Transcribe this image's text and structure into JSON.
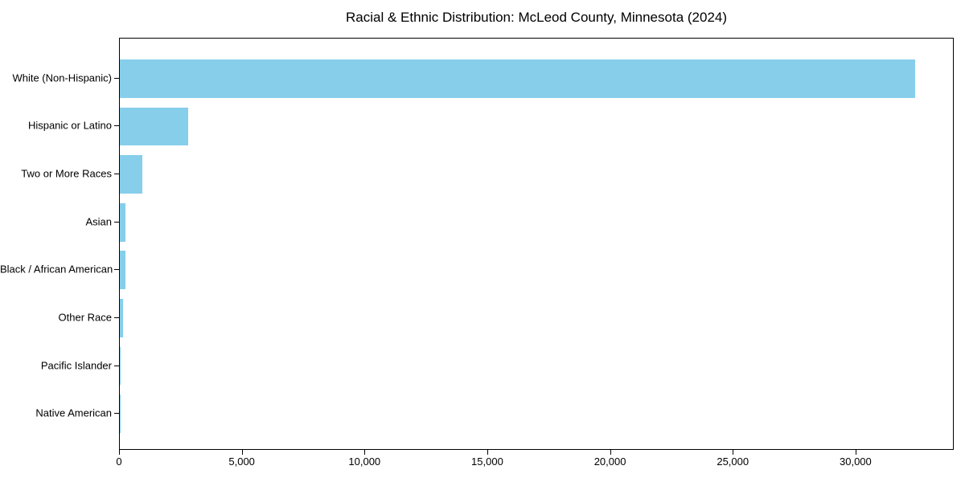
{
  "chart_data": {
    "type": "bar",
    "orientation": "horizontal",
    "title": "Racial & Ethnic Distribution: McLeod County, Minnesota (2024)",
    "xlabel": "",
    "ylabel": "",
    "categories": [
      "White (Non-Hispanic)",
      "Hispanic or Latino",
      "Two or More Races",
      "Asian",
      "Black / African American",
      "Other Race",
      "Pacific Islander",
      "Native American"
    ],
    "values": [
      32400,
      2770,
      930,
      230,
      240,
      120,
      20,
      10
    ],
    "xlim": [
      0,
      34000
    ],
    "x_ticks": [
      0,
      5000,
      10000,
      15000,
      20000,
      25000,
      30000
    ],
    "x_tick_labels": [
      "0",
      "5,000",
      "10,000",
      "15,000",
      "20,000",
      "25,000",
      "30,000"
    ],
    "bar_color": "#87CEEB",
    "axis_color": "#000000",
    "background_color": "#ffffff",
    "grid": false,
    "legend": false
  }
}
